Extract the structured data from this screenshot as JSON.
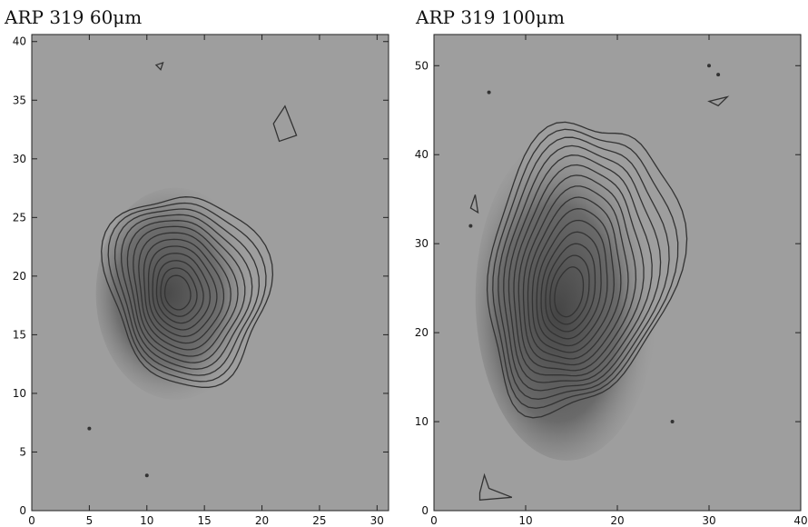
{
  "chart_data": [
    {
      "type": "contour",
      "title": "ARP 319  60μm",
      "xlim": [
        0,
        31
      ],
      "xticks": [
        0,
        5,
        10,
        15,
        20,
        25,
        30
      ],
      "ylim": [
        0,
        40.6
      ],
      "yticks": [
        0,
        5,
        10,
        15,
        20,
        25,
        30,
        35,
        40
      ]
    },
    {
      "type": "contour",
      "title": "ARP 319  100μm",
      "xlim": [
        0,
        40
      ],
      "xticks": [
        0,
        10,
        20,
        30,
        40
      ],
      "ylim": [
        0,
        53.5
      ],
      "yticks": [
        0,
        10,
        20,
        30,
        40,
        50
      ]
    }
  ]
}
